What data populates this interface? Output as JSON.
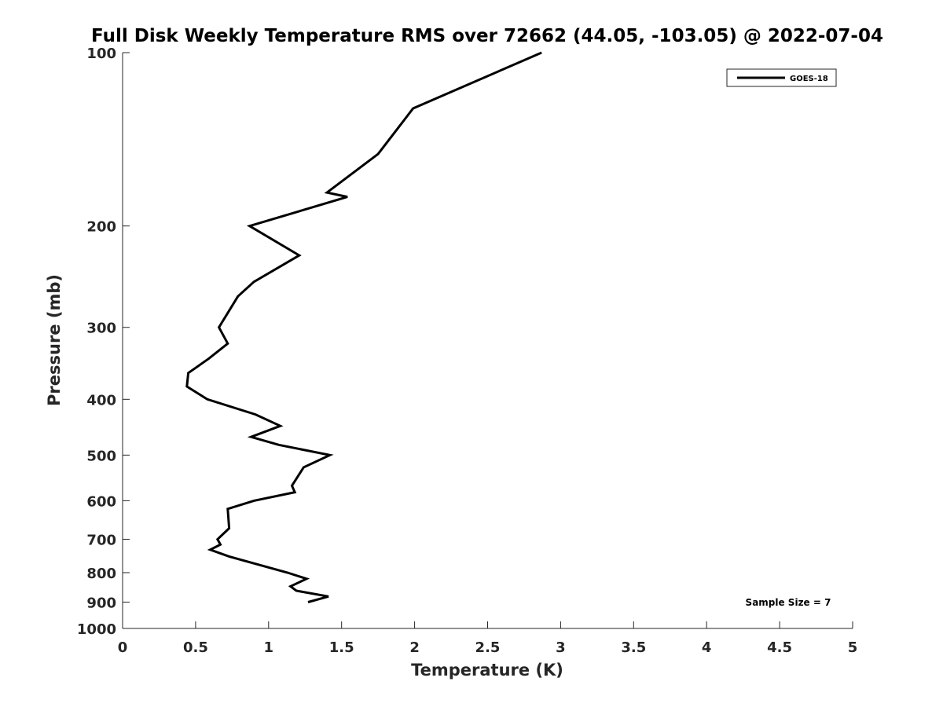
{
  "chart_data": {
    "type": "line",
    "title": "Full Disk Weekly Temperature RMS over 72662 (44.05, -103.05) @ 2022-07-04",
    "xlabel": "Temperature (K)",
    "ylabel": "Pressure (mb)",
    "xlim": [
      0,
      5
    ],
    "ylim": [
      100,
      1000
    ],
    "y_scale": "log",
    "y_reversed": true,
    "x_ticks": [
      "0",
      "0.5",
      "1",
      "1.5",
      "2",
      "2.5",
      "3",
      "3.5",
      "4",
      "4.5",
      "5"
    ],
    "y_ticks": [
      "100",
      "200",
      "300",
      "400",
      "500",
      "600",
      "700",
      "800",
      "900",
      "1000"
    ],
    "grid": false,
    "legend_position": "top-right",
    "annotation": "Sample Size = 7",
    "series": [
      {
        "name": "GOES-18",
        "color": "#000000",
        "points": [
          {
            "t": 2.87,
            "p": 100
          },
          {
            "t": 1.99,
            "p": 125
          },
          {
            "t": 1.75,
            "p": 150
          },
          {
            "t": 1.4,
            "p": 175
          },
          {
            "t": 1.54,
            "p": 178
          },
          {
            "t": 0.87,
            "p": 200
          },
          {
            "t": 1.21,
            "p": 225
          },
          {
            "t": 0.9,
            "p": 250
          },
          {
            "t": 0.79,
            "p": 265
          },
          {
            "t": 0.66,
            "p": 300
          },
          {
            "t": 0.72,
            "p": 320
          },
          {
            "t": 0.59,
            "p": 340
          },
          {
            "t": 0.45,
            "p": 360
          },
          {
            "t": 0.44,
            "p": 380
          },
          {
            "t": 0.58,
            "p": 400
          },
          {
            "t": 0.91,
            "p": 425
          },
          {
            "t": 1.08,
            "p": 445
          },
          {
            "t": 0.88,
            "p": 465
          },
          {
            "t": 1.07,
            "p": 480
          },
          {
            "t": 1.42,
            "p": 500
          },
          {
            "t": 1.24,
            "p": 525
          },
          {
            "t": 1.16,
            "p": 565
          },
          {
            "t": 1.18,
            "p": 580
          },
          {
            "t": 0.9,
            "p": 600
          },
          {
            "t": 0.72,
            "p": 620
          },
          {
            "t": 0.73,
            "p": 670
          },
          {
            "t": 0.65,
            "p": 700
          },
          {
            "t": 0.67,
            "p": 715
          },
          {
            "t": 0.6,
            "p": 730
          },
          {
            "t": 0.73,
            "p": 750
          },
          {
            "t": 1.13,
            "p": 800
          },
          {
            "t": 1.26,
            "p": 820
          },
          {
            "t": 1.15,
            "p": 845
          },
          {
            "t": 1.19,
            "p": 860
          },
          {
            "t": 1.41,
            "p": 880
          },
          {
            "t": 1.27,
            "p": 900
          }
        ]
      }
    ]
  }
}
